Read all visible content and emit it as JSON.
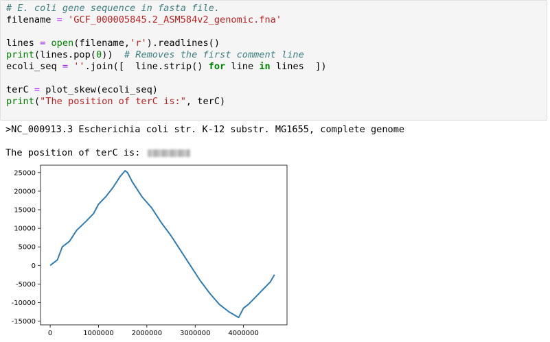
{
  "cell": {
    "lines": [
      "# E. coli gene sequence in fasta file.",
      "filename = 'GCF_000005845.2_ASM584v2_genomic.fna'",
      "",
      "lines = open(filename,'r').readlines()",
      "print(lines.pop(0))  # Removes the first comment line",
      "ecoli_seq = ''.join([  line.strip() for line in lines  ])",
      "",
      "terC = plot_skew(ecoli_seq)",
      "print(\"The position of terC is:\", terC)"
    ]
  },
  "output": {
    "header_line": ">NC_000913.3 Escherichia coli str. K-12 substr. MG1655, complete genome",
    "terc_label": "The position of terC is:",
    "terc_value_redacted": true
  },
  "chart_data": {
    "type": "line",
    "title": "",
    "xlabel": "",
    "ylabel": "",
    "xlim": [
      -200000,
      4900000
    ],
    "ylim": [
      -16000,
      27000
    ],
    "x_ticks": [
      0,
      1000000,
      2000000,
      3000000,
      4000000
    ],
    "y_ticks": [
      25000,
      20000,
      15000,
      10000,
      5000,
      0,
      -5000,
      -10000,
      -15000
    ],
    "line_color": "#2f7bb6",
    "series": [
      {
        "x": [
          0,
          150000,
          250000,
          400000,
          550000,
          750000,
          900000,
          1000000,
          1150000,
          1300000,
          1450000,
          1550000,
          1600000,
          1700000,
          1900000,
          2100000,
          2300000,
          2500000,
          2700000,
          2900000,
          3100000,
          3300000,
          3500000,
          3700000,
          3900000,
          4000000,
          4100000,
          4250000,
          4400000,
          4550000,
          4641652
        ],
        "y": [
          0,
          1500,
          5000,
          6500,
          9500,
          12000,
          14000,
          16500,
          18500,
          21000,
          24000,
          25500,
          25000,
          22500,
          18500,
          15500,
          11500,
          8000,
          4000,
          0,
          -4000,
          -7500,
          -10500,
          -12500,
          -14000,
          -11500,
          -10500,
          -8500,
          -6500,
          -4500,
          -2500
        ]
      }
    ]
  }
}
